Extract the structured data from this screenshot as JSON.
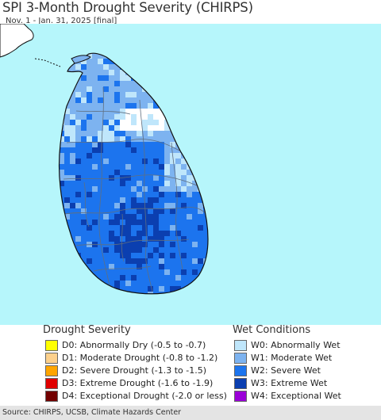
{
  "header": {
    "title": "SPI 3-Month Drought Severity (CHIRPS)",
    "subtitle": "Nov. 1 - Jan. 31, 2025 [final]"
  },
  "colors": {
    "ocean": "#b6f6fb",
    "land_base": "#ffffff",
    "w0": "#bfe6fb",
    "w1": "#7db3f0",
    "w2": "#1c74ee",
    "w3": "#0b3fb0",
    "w4": "#8a1ae0",
    "boundary": "#5f6f80",
    "coast": "#111111"
  },
  "legend": {
    "drought": {
      "title": "Drought Severity",
      "items": [
        {
          "label": "D0: Abnormally Dry (-0.5 to -0.7)",
          "color": "#ffff00"
        },
        {
          "label": "D1: Moderate Drought (-0.8 to -1.2)",
          "color": "#fcd08c"
        },
        {
          "label": "D2: Severe Drought (-1.3 to -1.5)",
          "color": "#ffa500"
        },
        {
          "label": "D3: Extreme Drought (-1.6 to -1.9)",
          "color": "#e00000"
        },
        {
          "label": "D4: Exceptional Drought (-2.0 or less)",
          "color": "#720000"
        }
      ]
    },
    "wet": {
      "title": "Wet Conditions",
      "items": [
        {
          "label": "W0: Abnormally Wet",
          "color": "#bfe6fb"
        },
        {
          "label": "W1: Moderate Wet",
          "color": "#7db3f0"
        },
        {
          "label": "W2: Severe Wet",
          "color": "#1c74ee"
        },
        {
          "label": "W3: Extreme Wet",
          "color": "#0b3fb0"
        },
        {
          "label": "W4: Exceptional Wet",
          "color": "#9a00d8"
        }
      ]
    }
  },
  "footer": {
    "source": "Source: CHIRPS, UCSB, Climate Hazards Center"
  }
}
